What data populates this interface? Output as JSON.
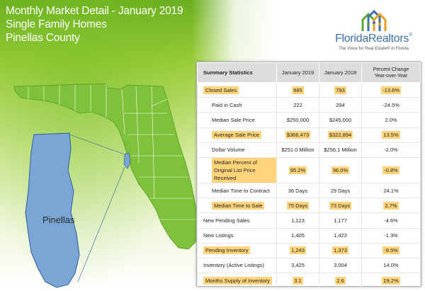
{
  "header": {
    "title_line1": "Monthly Market Detail - January 2019",
    "title_line2": "Single Family Homes",
    "title_line3": "Pinellas County"
  },
  "logo": {
    "name_florida": "Florida",
    "name_realtors": "Realtors",
    "registered": "®",
    "tagline": "The Voice for Real Estate® in Florida"
  },
  "map": {
    "county_label": "Pinellas",
    "highlight_color": "#7aa6d6",
    "state_color": "#7ec13a"
  },
  "table": {
    "headers": {
      "label": "Summary Statistics",
      "col1": "January 2019",
      "col2": "January 2018",
      "col3_line1": "Percent Change",
      "col3_line2": "Year-over-Year"
    },
    "rows": [
      {
        "label": "Closed Sales",
        "v1": "685",
        "v2": "793",
        "pct": "-13.6%",
        "highlight": true,
        "indent": false
      },
      {
        "label": "Paid in Cash",
        "v1": "222",
        "v2": "294",
        "pct": "-24.5%",
        "highlight": false,
        "indent": true
      },
      {
        "label": "Median Sale Price",
        "v1": "$250,000",
        "v2": "$245,000",
        "pct": "2.0%",
        "highlight": false,
        "indent": true
      },
      {
        "label": "Average Sale Price",
        "v1": "$366,473",
        "v2": "$322,894",
        "pct": "13.5%",
        "highlight": true,
        "indent": true
      },
      {
        "label": "Dollar Volume",
        "v1": "$251.0 Million",
        "v2": "$256.1 Million",
        "pct": "-2.0%",
        "highlight": false,
        "indent": true
      },
      {
        "label": "Median Percent of Original List Price Received",
        "v1": "95.2%",
        "v2": "96.0%",
        "pct": "-0.8%",
        "highlight": true,
        "indent": true
      },
      {
        "label": "Median Time to Contract",
        "v1": "36 Days",
        "v2": "29 Days",
        "pct": "24.1%",
        "highlight": false,
        "indent": true
      },
      {
        "label": "Median Time to Sale",
        "v1": "75 Days",
        "v2": "73 Days",
        "pct": "2.7%",
        "highlight": true,
        "indent": true
      },
      {
        "label": "New Pending Sales",
        "v1": "1,123",
        "v2": "1,177",
        "pct": "-4.6%",
        "highlight": false,
        "indent": false
      },
      {
        "label": "New Listings",
        "v1": "1,405",
        "v2": "1,423",
        "pct": "-1.3%",
        "highlight": false,
        "indent": false
      },
      {
        "label": "Pending Inventory",
        "v1": "1,243",
        "v2": "1,373",
        "pct": "-9.5%",
        "highlight": true,
        "indent": false
      },
      {
        "label": "Inventory (Active Listings)",
        "v1": "3,425",
        "v2": "3,004",
        "pct": "14.0%",
        "highlight": false,
        "indent": false
      },
      {
        "label": "Months Supply of Inventory",
        "v1": "3.1",
        "v2": "2.6",
        "pct": "19.2%",
        "highlight": true,
        "indent": false
      }
    ]
  }
}
